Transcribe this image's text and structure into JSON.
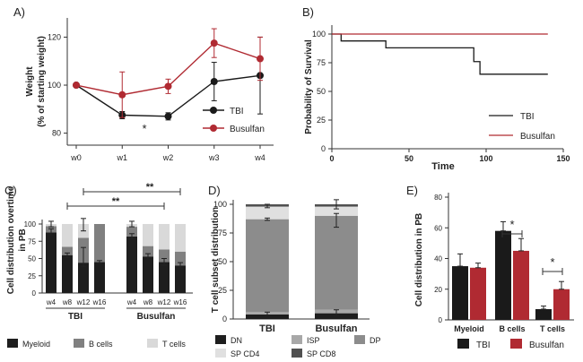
{
  "colors": {
    "tbi": "#1a1a1a",
    "busulfan": "#b02a32",
    "axis": "#333333",
    "myeloid": "#1e1e1e",
    "bcells": "#808080",
    "tcells": "#d9d9d9",
    "dn": "#1e1e1e",
    "isp": "#a8a8a8",
    "dp": "#8c8c8c",
    "spcd4": "#e0e0e0",
    "spcd8": "#505050"
  },
  "chart_data": [
    {
      "panel": "A)",
      "type": "line",
      "ylabel": "Weight",
      "ylabel2": "(% of starting weight)",
      "categories": [
        "w0",
        "w1",
        "w2",
        "w3",
        "w4"
      ],
      "ylim": [
        75,
        128
      ],
      "yticks": [
        "80",
        "100",
        "120"
      ],
      "series": [
        {
          "name": "TBI",
          "values": [
            100,
            87.5,
            87,
            101.5,
            104
          ],
          "errors": [
            0,
            1.5,
            1.5,
            8,
            16
          ]
        },
        {
          "name": "Busulfan",
          "values": [
            100,
            96,
            99.5,
            117.5,
            111
          ],
          "errors": [
            0,
            9.5,
            3,
            6,
            9
          ]
        }
      ],
      "annotation": "*"
    },
    {
      "panel": "B)",
      "type": "line",
      "ylabel": "Probability of Survival",
      "xlabel": "Time",
      "xlim": [
        0,
        150
      ],
      "ylim": [
        0,
        100
      ],
      "xticks": [
        "0",
        "50",
        "100",
        "150"
      ],
      "yticks": [
        "0",
        "25",
        "50",
        "75",
        "100"
      ],
      "series": [
        {
          "name": "TBI",
          "x": [
            0,
            6,
            6,
            35,
            35,
            92,
            92,
            96,
            96,
            140
          ],
          "y": [
            100,
            100,
            94,
            94,
            88,
            88,
            76,
            76,
            65,
            65
          ]
        },
        {
          "name": "Busulfan",
          "x": [
            0,
            140
          ],
          "y": [
            100,
            100
          ]
        }
      ]
    },
    {
      "panel": "C)",
      "type": "bar",
      "ylabel": "Cell distribution overtime",
      "ylabel2": "in PB",
      "categories": [
        "w4",
        "w8",
        "w12",
        "w16",
        "w4",
        "w8",
        "w12",
        "w16"
      ],
      "groups": [
        "TBI",
        "Busulfan"
      ],
      "ylim": [
        0,
        100
      ],
      "yticks": [
        "0",
        "25",
        "50",
        "75",
        "100"
      ],
      "series": [
        {
          "name": "Myeloid",
          "values": [
            88,
            55,
            44,
            45,
            82,
            53,
            45,
            40
          ]
        },
        {
          "name": "B cells",
          "values": [
            9,
            12,
            36,
            55,
            14,
            15,
            18,
            20
          ]
        },
        {
          "name": "T cells",
          "values": [
            3,
            33,
            20,
            0,
            4,
            32,
            37,
            40
          ]
        }
      ],
      "annotations": [
        "**",
        "**"
      ]
    },
    {
      "panel": "D)",
      "type": "bar",
      "ylabel": "T cell subset distribution",
      "categories": [
        "TBI",
        "Busulfan"
      ],
      "ylim": [
        0,
        100
      ],
      "yticks": [
        "0",
        "25",
        "50",
        "75",
        "100"
      ],
      "series": [
        {
          "name": "DN",
          "values": [
            4,
            5
          ]
        },
        {
          "name": "ISP",
          "values": [
            2,
            3
          ]
        },
        {
          "name": "DP",
          "values": [
            81,
            82
          ]
        },
        {
          "name": "SP CD4",
          "values": [
            11,
            8
          ]
        },
        {
          "name": "SP CD8",
          "values": [
            2,
            2
          ]
        }
      ]
    },
    {
      "panel": "E)",
      "type": "bar",
      "ylabel": "Cell distribution in PB",
      "categories": [
        "Myeloid",
        "B cells",
        "T cells"
      ],
      "ylim": [
        0,
        80
      ],
      "yticks": [
        "0",
        "20",
        "40",
        "60",
        "80"
      ],
      "series": [
        {
          "name": "TBI",
          "values": [
            35,
            58,
            7
          ],
          "errors": [
            8,
            6,
            2
          ]
        },
        {
          "name": "Busulfan",
          "values": [
            34,
            45,
            20
          ],
          "errors": [
            3,
            8,
            5
          ]
        }
      ],
      "annotations": [
        "*",
        "*"
      ]
    }
  ]
}
